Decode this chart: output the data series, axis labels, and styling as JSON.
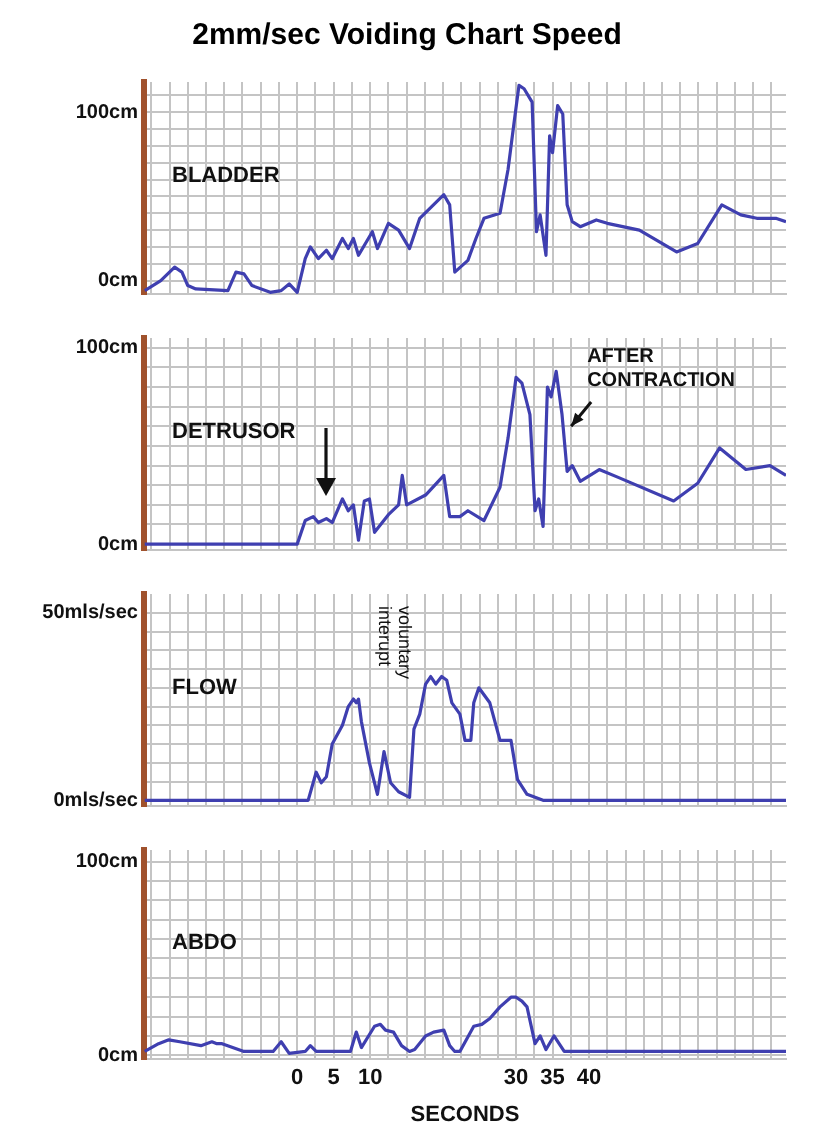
{
  "chart_data": [
    {
      "type": "line",
      "title": "2mm/sec Voiding Chart Speed",
      "ylabel": "BLADDER",
      "color": "#3f3fb0",
      "marker": "none",
      "grid": true,
      "tick_labels": "y",
      "x": [
        -20.9,
        -18.7,
        -16.8,
        -15.8,
        -15,
        -13.9,
        -9.5,
        -8.4,
        -7.3,
        -6.2,
        -3.7,
        -2.2,
        -1.1,
        0,
        1.1,
        1.8,
        2.9,
        4,
        4.8,
        6.2,
        7,
        7.7,
        8.4,
        10.3,
        11,
        12.5,
        13.9,
        15.4,
        16.8,
        20.1,
        20.9,
        21.6,
        23.4,
        24.5,
        25.6,
        27.8,
        28.9,
        29.7,
        30.4,
        31.1,
        32.2,
        32.8,
        33.3,
        34.1,
        34.6,
        35,
        35.7,
        36.4,
        37,
        37.7,
        38.8,
        41,
        42.5,
        46.9,
        52,
        54.9,
        58.2,
        60.8,
        63,
        65.6,
        67
      ],
      "values": [
        -6,
        0,
        8,
        5,
        -3,
        -5,
        -6,
        5,
        4,
        -3,
        -7,
        -6,
        -2,
        -7,
        13,
        20,
        13,
        18,
        13,
        25,
        19,
        25,
        15,
        29,
        19,
        34,
        30,
        19,
        37,
        51,
        45,
        5,
        12,
        25,
        37,
        40,
        66,
        93,
        116,
        114,
        106,
        29,
        39,
        15,
        86,
        76,
        104,
        99,
        45,
        35,
        32,
        36,
        34,
        30,
        17,
        22,
        45,
        39,
        37,
        37,
        35
      ],
      "xlim": [
        -21,
        67
      ],
      "xticks": [
        {
          "value": -20,
          "label": null
        },
        {
          "value": -17.5,
          "label": null
        },
        {
          "value": -15,
          "label": null
        },
        {
          "value": -12.5,
          "label": null
        },
        {
          "value": -10,
          "label": null
        },
        {
          "value": -7.5,
          "label": null
        },
        {
          "value": -5,
          "label": null
        },
        {
          "value": -2.5,
          "label": null
        },
        0,
        {
          "value": 2.5,
          "label": null
        },
        5,
        {
          "value": 7.5,
          "label": null
        },
        10,
        {
          "value": 12.5,
          "label": null
        },
        {
          "value": 15,
          "label": null
        },
        {
          "value": 17.5,
          "label": null
        },
        {
          "value": 20,
          "label": null
        },
        {
          "value": 22.5,
          "label": null
        },
        {
          "value": 25,
          "label": null
        },
        {
          "value": 27.5,
          "label": null
        },
        30,
        {
          "value": 32.5,
          "label": null
        },
        35,
        {
          "value": 37.5,
          "label": null
        },
        40,
        {
          "value": 42.5,
          "label": null
        },
        {
          "value": 45,
          "label": null
        },
        {
          "value": 47.5,
          "label": null
        },
        {
          "value": 50,
          "label": null
        },
        {
          "value": 52.5,
          "label": null
        },
        {
          "value": 55,
          "label": null
        },
        {
          "value": 57.5,
          "label": null
        },
        {
          "value": 60,
          "label": null
        },
        {
          "value": 62.5,
          "label": null
        },
        {
          "value": 65,
          "label": null
        }
      ],
      "ylim": [
        -8,
        118
      ],
      "yticks": [
        {
          "value": 0,
          "label": "0cm"
        },
        {
          "value": 10,
          "label": null
        },
        {
          "value": 20,
          "label": null
        },
        {
          "value": 30,
          "label": null
        },
        {
          "value": 40,
          "label": null
        },
        {
          "value": 50,
          "label": null
        },
        {
          "value": 60,
          "label": null
        },
        {
          "value": 70,
          "label": null
        },
        {
          "value": 80,
          "label": null
        },
        {
          "value": 90,
          "label": null
        },
        {
          "value": 100,
          "label": "100cm"
        },
        {
          "value": 110,
          "label": null
        }
      ]
    },
    {
      "type": "line",
      "ylabel": "DETRUSOR",
      "color": "#3f3fb0",
      "marker": "none",
      "grid": true,
      "tick_labels": "y",
      "annotations": [
        {
          "text": "AFTER CONTRACTION",
          "x": 37,
          "y": 58
        }
      ],
      "x": [
        -20.9,
        0,
        1.1,
        2.2,
        2.9,
        4,
        4.8,
        6.2,
        7,
        7.7,
        8.4,
        9.2,
        9.9,
        10.6,
        12.5,
        13.9,
        14.4,
        15,
        17.6,
        20.1,
        20.9,
        22.3,
        23.4,
        25.6,
        27.8,
        28.9,
        30,
        30.8,
        31.9,
        32.6,
        33.1,
        33.7,
        34.3,
        34.8,
        35.5,
        36.3,
        37,
        37.7,
        38.8,
        41.4,
        44,
        51.6,
        54.9,
        57.9,
        61.5,
        64.8,
        67
      ],
      "values": [
        0,
        0,
        12,
        14,
        11,
        13,
        11,
        23,
        17,
        20,
        2,
        22,
        23,
        6,
        15,
        20,
        35,
        20,
        25,
        35,
        14,
        14,
        17,
        12,
        29,
        54,
        85,
        82,
        66,
        17,
        23,
        9,
        80,
        75,
        88,
        66,
        37,
        40,
        32,
        38,
        34,
        22,
        31,
        49,
        38,
        40,
        35
      ],
      "xlim": [
        -21,
        67
      ],
      "xticks": [
        {
          "value": -20,
          "label": null
        },
        {
          "value": -17.5,
          "label": null
        },
        {
          "value": -15,
          "label": null
        },
        {
          "value": -12.5,
          "label": null
        },
        {
          "value": -10,
          "label": null
        },
        {
          "value": -7.5,
          "label": null
        },
        {
          "value": -5,
          "label": null
        },
        {
          "value": -2.5,
          "label": null
        },
        0,
        {
          "value": 2.5,
          "label": null
        },
        5,
        {
          "value": 7.5,
          "label": null
        },
        10,
        {
          "value": 12.5,
          "label": null
        },
        {
          "value": 15,
          "label": null
        },
        {
          "value": 17.5,
          "label": null
        },
        {
          "value": 20,
          "label": null
        },
        {
          "value": 22.5,
          "label": null
        },
        {
          "value": 25,
          "label": null
        },
        {
          "value": 27.5,
          "label": null
        },
        30,
        {
          "value": 32.5,
          "label": null
        },
        35,
        {
          "value": 37.5,
          "label": null
        },
        40,
        {
          "value": 42.5,
          "label": null
        },
        {
          "value": 45,
          "label": null
        },
        {
          "value": 47.5,
          "label": null
        },
        {
          "value": 50,
          "label": null
        },
        {
          "value": 52.5,
          "label": null
        },
        {
          "value": 55,
          "label": null
        },
        {
          "value": 57.5,
          "label": null
        },
        {
          "value": 60,
          "label": null
        },
        {
          "value": 62.5,
          "label": null
        },
        {
          "value": 65,
          "label": null
        }
      ],
      "ylim": [
        -3,
        105
      ],
      "yticks": [
        {
          "value": 0,
          "label": "0cm"
        },
        {
          "value": 10,
          "label": null
        },
        {
          "value": 20,
          "label": null
        },
        {
          "value": 30,
          "label": null
        },
        {
          "value": 40,
          "label": null
        },
        {
          "value": 50,
          "label": null
        },
        {
          "value": 60,
          "label": null
        },
        {
          "value": 70,
          "label": null
        },
        {
          "value": 80,
          "label": null
        },
        {
          "value": 90,
          "label": null
        },
        {
          "value": 100,
          "label": "100cm"
        }
      ]
    },
    {
      "type": "line",
      "ylabel": "FLOW",
      "color": "#3f3fb0",
      "marker": "none",
      "grid": true,
      "tick_labels": "y",
      "annotations": [
        "voluntary interupt"
      ],
      "x": [
        -20.9,
        1.5,
        2.6,
        3.3,
        4,
        4.8,
        6.2,
        7,
        7.7,
        8.1,
        8.4,
        8.8,
        9.9,
        11,
        11.9,
        12.8,
        13.9,
        15.4,
        16,
        16.8,
        17.6,
        18.3,
        19,
        19.8,
        20.5,
        21.2,
        22.3,
        23,
        23.8,
        24.2,
        24.9,
        26.4,
        27.8,
        29.3,
        30.2,
        31.5,
        33.7,
        67
      ],
      "values": [
        0,
        0,
        7.5,
        4.7,
        6.3,
        15,
        20,
        25,
        27,
        26,
        27,
        21,
        10,
        1.6,
        13,
        4.7,
        2.3,
        0.8,
        19,
        23,
        31,
        33,
        31,
        33,
        32,
        26,
        23,
        16,
        16,
        26,
        30,
        26,
        16,
        16,
        5.5,
        1.6,
        0,
        0
      ],
      "xlim": [
        -21,
        67
      ],
      "xticks": [
        {
          "value": -20,
          "label": null
        },
        {
          "value": -17.5,
          "label": null
        },
        {
          "value": -15,
          "label": null
        },
        {
          "value": -12.5,
          "label": null
        },
        {
          "value": -10,
          "label": null
        },
        {
          "value": -7.5,
          "label": null
        },
        {
          "value": -5,
          "label": null
        },
        {
          "value": -2.5,
          "label": null
        },
        0,
        {
          "value": 2.5,
          "label": null
        },
        5,
        {
          "value": 7.5,
          "label": null
        },
        10,
        {
          "value": 12.5,
          "label": null
        },
        {
          "value": 15,
          "label": null
        },
        {
          "value": 17.5,
          "label": null
        },
        {
          "value": 20,
          "label": null
        },
        {
          "value": 22.5,
          "label": null
        },
        {
          "value": 25,
          "label": null
        },
        {
          "value": 27.5,
          "label": null
        },
        30,
        {
          "value": 32.5,
          "label": null
        },
        35,
        {
          "value": 37.5,
          "label": null
        },
        40,
        {
          "value": 42.5,
          "label": null
        },
        {
          "value": 45,
          "label": null
        },
        {
          "value": 47.5,
          "label": null
        },
        {
          "value": 50,
          "label": null
        },
        {
          "value": 52.5,
          "label": null
        },
        {
          "value": 55,
          "label": null
        },
        {
          "value": 57.5,
          "label": null
        },
        {
          "value": 60,
          "label": null
        },
        {
          "value": 62.5,
          "label": null
        },
        {
          "value": 65,
          "label": null
        }
      ],
      "ylim": [
        -1.5,
        55
      ],
      "yticks": [
        {
          "value": 0,
          "label": "0mls/sec"
        },
        {
          "value": 5,
          "label": null
        },
        {
          "value": 10,
          "label": null
        },
        {
          "value": 15,
          "label": null
        },
        {
          "value": 20,
          "label": null
        },
        {
          "value": 25,
          "label": null
        },
        {
          "value": 30,
          "label": null
        },
        {
          "value": 35,
          "label": null
        },
        {
          "value": 40,
          "label": null
        },
        {
          "value": 45,
          "label": null
        },
        {
          "value": 50,
          "label": "50mls/sec"
        }
      ]
    },
    {
      "type": "line",
      "ylabel": "ABDO",
      "xlabel": "SECONDS",
      "color": "#3f3fb0",
      "marker": "none",
      "grid": true,
      "x": [
        -20.9,
        -19,
        -17.6,
        -16.1,
        -13.2,
        -11.7,
        -11,
        -10.3,
        -7.3,
        -3.3,
        -2.2,
        -1.1,
        1.1,
        1.8,
        2.6,
        7.3,
        8.1,
        8.8,
        10.6,
        11.4,
        12.1,
        13.2,
        14.3,
        15.4,
        16.1,
        17.6,
        18.7,
        20.1,
        20.9,
        21.6,
        22.3,
        24.2,
        25.3,
        26.4,
        27.8,
        29.3,
        30,
        30.8,
        31.5,
        32.6,
        33.3,
        34.1,
        35.2,
        35.9,
        36.6,
        67
      ],
      "values": [
        2,
        6,
        8,
        7,
        5,
        7,
        6,
        6,
        2,
        2,
        7,
        1,
        2,
        5,
        2,
        2,
        12,
        4,
        15,
        16,
        13,
        12,
        5,
        2,
        3,
        10,
        12,
        13,
        5,
        2,
        2,
        15,
        16,
        19,
        25,
        30,
        30,
        28,
        25,
        6,
        10,
        3,
        10,
        6,
        2,
        2
      ],
      "xlim": [
        -21,
        67
      ],
      "xticks": [
        {
          "value": -20,
          "label": null
        },
        {
          "value": -17.5,
          "label": null
        },
        {
          "value": -15,
          "label": null
        },
        {
          "value": -12.5,
          "label": null
        },
        {
          "value": -10,
          "label": null
        },
        {
          "value": -7.5,
          "label": null
        },
        {
          "value": -5,
          "label": null
        },
        {
          "value": -2.5,
          "label": null
        },
        0,
        {
          "value": 2.5,
          "label": null
        },
        5,
        {
          "value": 7.5,
          "label": null
        },
        10,
        {
          "value": 12.5,
          "label": null
        },
        {
          "value": 15,
          "label": null
        },
        {
          "value": 17.5,
          "label": null
        },
        {
          "value": 20,
          "label": null
        },
        {
          "value": 22.5,
          "label": null
        },
        {
          "value": 25,
          "label": null
        },
        {
          "value": 27.5,
          "label": null
        },
        30,
        {
          "value": 32.5,
          "label": null
        },
        35,
        {
          "value": 37.5,
          "label": null
        },
        40,
        {
          "value": 42.5,
          "label": null
        },
        {
          "value": 45,
          "label": null
        },
        {
          "value": 47.5,
          "label": null
        },
        {
          "value": 50,
          "label": null
        },
        {
          "value": 52.5,
          "label": null
        },
        {
          "value": 55,
          "label": null
        },
        {
          "value": 57.5,
          "label": null
        },
        {
          "value": 60,
          "label": null
        },
        {
          "value": 62.5,
          "label": null
        },
        {
          "value": 65,
          "label": null
        }
      ],
      "ylim": [
        -2,
        106
      ],
      "yticks": [
        {
          "value": 0,
          "label": "0cm"
        },
        {
          "value": 10,
          "label": null
        },
        {
          "value": 20,
          "label": null
        },
        {
          "value": 30,
          "label": null
        },
        {
          "value": 40,
          "label": null
        },
        {
          "value": 50,
          "label": null
        },
        {
          "value": 60,
          "label": null
        },
        {
          "value": 70,
          "label": null
        },
        {
          "value": 80,
          "label": null
        },
        {
          "value": 90,
          "label": null
        },
        {
          "value": 100,
          "label": "100cm"
        }
      ]
    }
  ]
}
